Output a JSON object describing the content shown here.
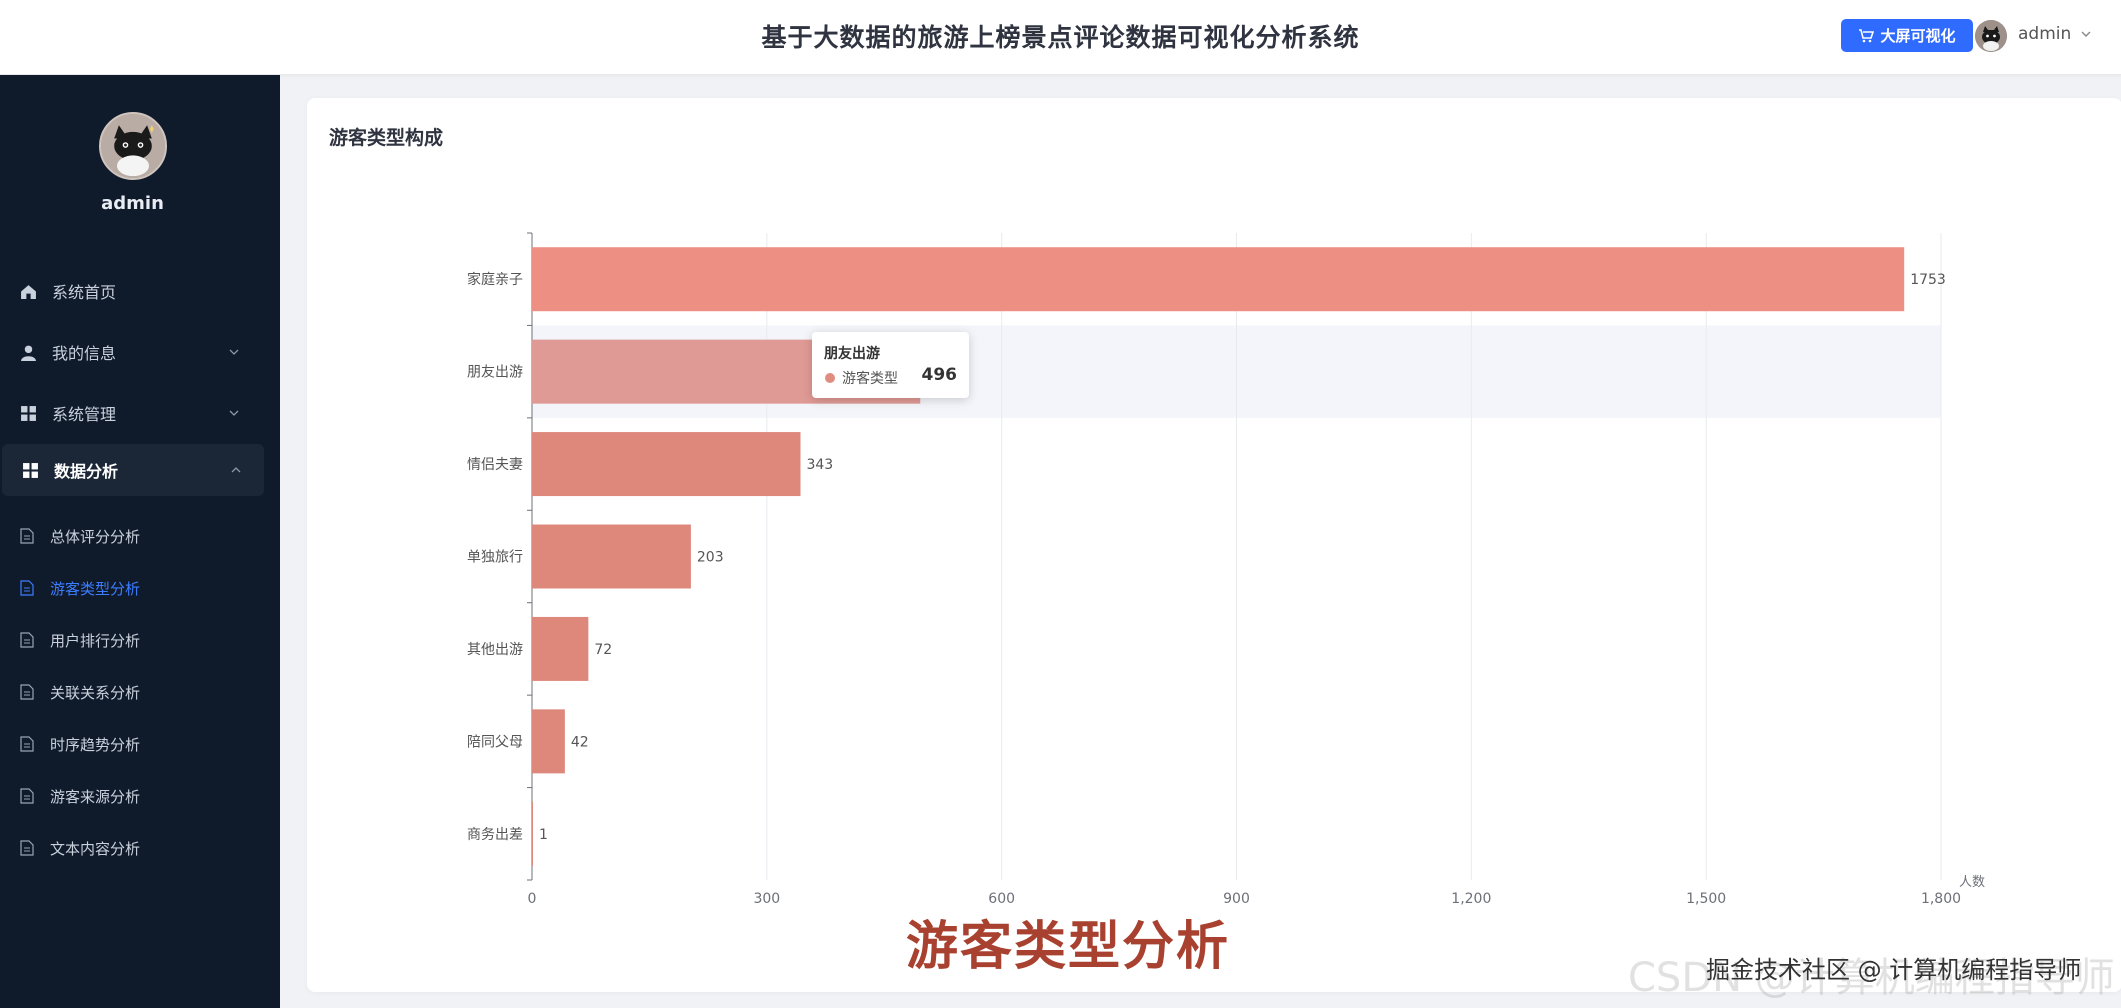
{
  "header": {
    "title": "基于大数据的旅游上榜景点评论数据可视化分析系统",
    "bigscreen_label": "大屏可视化",
    "user": "admin"
  },
  "sidebar": {
    "username": "admin",
    "menu": [
      {
        "label": "系统首页",
        "icon": "home-icon"
      },
      {
        "label": "我的信息",
        "icon": "user-icon"
      },
      {
        "label": "系统管理",
        "icon": "grid-icon"
      },
      {
        "label": "数据分析",
        "icon": "grid-icon"
      }
    ],
    "submenu": [
      {
        "label": "总体评分分析"
      },
      {
        "label": "游客类型分析"
      },
      {
        "label": "用户排行分析"
      },
      {
        "label": "关联关系分析"
      },
      {
        "label": "时序趋势分析"
      },
      {
        "label": "游客来源分析"
      },
      {
        "label": "文本内容分析"
      }
    ]
  },
  "card": {
    "title": "游客类型构成"
  },
  "chart_data": {
    "type": "bar",
    "orientation": "horizontal",
    "categories": [
      "家庭亲子",
      "朋友出游",
      "情侣夫妻",
      "单独旅行",
      "其他出游",
      "陪同父母",
      "商务出差"
    ],
    "series": [
      {
        "name": "游客类型",
        "values": [
          1753,
          496,
          343,
          203,
          72,
          42,
          1
        ]
      }
    ],
    "xlabel": "人数",
    "xlim": [
      0,
      1800
    ],
    "xticks": [
      0,
      300,
      600,
      900,
      1200,
      1500,
      1800
    ],
    "xtick_labels": [
      "0",
      "300",
      "600",
      "900",
      "1,200",
      "1,500",
      "1,800"
    ],
    "grid": true,
    "colors": [
      "#ee8f84",
      "#e09a95",
      "#de887c",
      "#de887c",
      "#de887c",
      "#de887c",
      "#de887c"
    ],
    "highlighted_category": "朋友出游"
  },
  "tooltip": {
    "title": "朋友出游",
    "series_name": "游客类型",
    "value": "496"
  },
  "overlay": {
    "caption": "游客类型分析",
    "watermark": "掘金技术社区 @ 计算机编程指导师",
    "watermark_bg": "CSDN @计算机编程指导师"
  }
}
